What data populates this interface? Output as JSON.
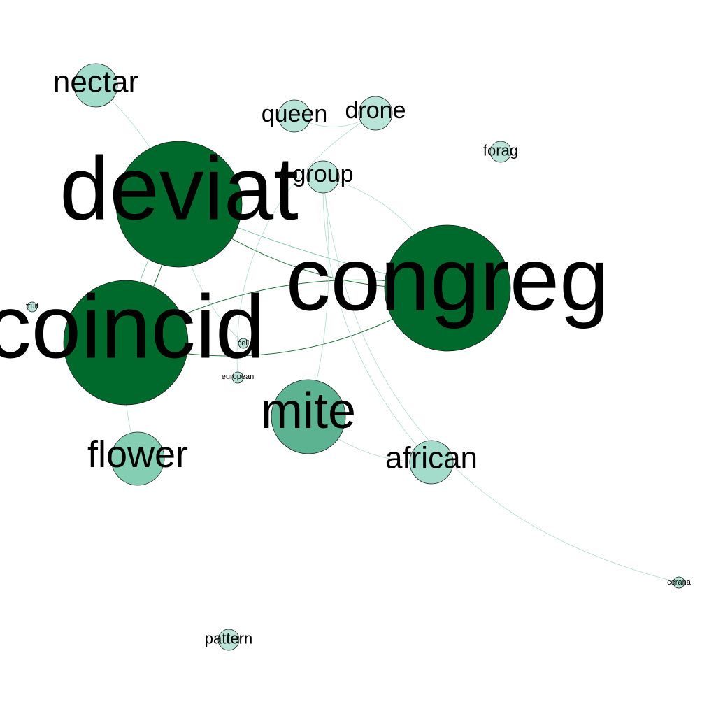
{
  "graph": {
    "nodes": [
      {
        "id": "deviat",
        "label": "deviat",
        "weight": 1.0
      },
      {
        "id": "congreg",
        "label": "congreg",
        "weight": 1.0
      },
      {
        "id": "coincid",
        "label": "coincid",
        "weight": 1.0
      },
      {
        "id": "mite",
        "label": "mite",
        "weight": 0.6
      },
      {
        "id": "flower",
        "label": "flower",
        "weight": 0.4
      },
      {
        "id": "nectar",
        "label": "nectar",
        "weight": 0.35
      },
      {
        "id": "african",
        "label": "african",
        "weight": 0.3
      },
      {
        "id": "queen",
        "label": "queen",
        "weight": 0.25
      },
      {
        "id": "drone",
        "label": "drone",
        "weight": 0.25
      },
      {
        "id": "group",
        "label": "group",
        "weight": 0.25
      },
      {
        "id": "forag",
        "label": "forag",
        "weight": 0.15
      },
      {
        "id": "pattern",
        "label": "pattern",
        "weight": 0.15
      },
      {
        "id": "cerana",
        "label": "cerana",
        "weight": 0.1
      },
      {
        "id": "european",
        "label": "european",
        "weight": 0.1
      },
      {
        "id": "fruit",
        "label": "fruit",
        "weight": 0.08
      },
      {
        "id": "cell",
        "label": "cell",
        "weight": 0.08
      }
    ],
    "edges": [
      {
        "source": "deviat",
        "target": "congreg",
        "strength": 1.0
      },
      {
        "source": "deviat",
        "target": "coincid",
        "strength": 1.0
      },
      {
        "source": "coincid",
        "target": "congreg",
        "strength": 1.0
      },
      {
        "source": "coincid",
        "target": "congreg",
        "strength": 1.0
      },
      {
        "source": "deviat",
        "target": "nectar",
        "strength": 0.4
      },
      {
        "source": "coincid",
        "target": "flower",
        "strength": 0.4
      },
      {
        "source": "coincid",
        "target": "deviat",
        "strength": 0.5
      },
      {
        "source": "deviat",
        "target": "congreg",
        "strength": 0.6
      },
      {
        "source": "mite",
        "target": "african",
        "strength": 0.4
      },
      {
        "source": "group",
        "target": "congreg",
        "strength": 0.3
      },
      {
        "source": "group",
        "target": "cerana",
        "strength": 0.3
      },
      {
        "source": "group",
        "target": "african",
        "strength": 0.3
      },
      {
        "source": "queen",
        "target": "drone",
        "strength": 0.25
      },
      {
        "source": "drone",
        "target": "european",
        "strength": 0.25
      },
      {
        "source": "group",
        "target": "mite",
        "strength": 0.25
      },
      {
        "source": "deviat",
        "target": "cell",
        "strength": 0.25
      }
    ]
  }
}
